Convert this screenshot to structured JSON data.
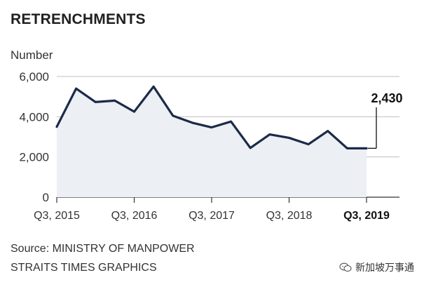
{
  "title": "RETRENCHMENTS",
  "source": "Source: MINISTRY OF MANPOWER",
  "credit": "STRAITS TIMES GRAPHICS",
  "watermark": "新加坡万事通",
  "colors": {
    "line": "#1b2a48",
    "fill": "#eceff3",
    "grid": "#bfbfbf",
    "axis": "#333333"
  },
  "chart_data": {
    "type": "area",
    "ylabel": "Number",
    "ylim": [
      0,
      6000
    ],
    "y_ticks": [
      {
        "value": 0,
        "label": "0"
      },
      {
        "value": 2000,
        "label": "2,000"
      },
      {
        "value": 4000,
        "label": "4,000"
      },
      {
        "value": 6000,
        "label": "6,000"
      }
    ],
    "x_ticks": [
      {
        "index": 0,
        "label": "Q3, 2015",
        "bold": false
      },
      {
        "index": 4,
        "label": "Q3, 2016",
        "bold": false
      },
      {
        "index": 8,
        "label": "Q3, 2017",
        "bold": false
      },
      {
        "index": 12,
        "label": "Q3, 2018",
        "bold": false
      },
      {
        "index": 16,
        "label": "Q3, 2019",
        "bold": true
      }
    ],
    "x": [
      "Q3 2015",
      "Q4 2015",
      "Q1 2016",
      "Q2 2016",
      "Q3 2016",
      "Q4 2016",
      "Q1 2017",
      "Q2 2017",
      "Q3 2017",
      "Q4 2017",
      "Q1 2018",
      "Q2 2018",
      "Q3 2018",
      "Q4 2018",
      "Q1 2019",
      "Q2 2019",
      "Q3 2019"
    ],
    "series": [
      {
        "values": [
          3500,
          5400,
          4730,
          4800,
          4250,
          5500,
          4050,
          3700,
          3470,
          3760,
          2450,
          3120,
          2950,
          2630,
          3290,
          2430,
          2430
        ]
      }
    ],
    "annotation": {
      "index": 16,
      "label": "2,430"
    },
    "grid": true
  }
}
